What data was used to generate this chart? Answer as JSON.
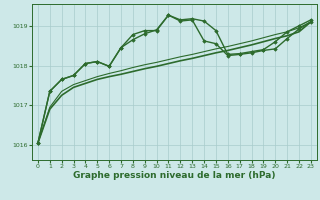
{
  "background_color": "#cde8e8",
  "grid_color": "#a8cccc",
  "line_color": "#2d6b2d",
  "marker_color": "#2d6b2d",
  "xlabel": "Graphe pression niveau de la mer (hPa)",
  "xlabel_fontsize": 6.5,
  "ylim": [
    1015.62,
    1019.55
  ],
  "xlim": [
    -0.5,
    23.5
  ],
  "yticks": [
    1016,
    1017,
    1018,
    1019
  ],
  "xticks": [
    0,
    1,
    2,
    3,
    4,
    5,
    6,
    7,
    8,
    9,
    10,
    11,
    12,
    13,
    14,
    15,
    16,
    17,
    18,
    19,
    20,
    21,
    22,
    23
  ],
  "series": [
    {
      "x": [
        0,
        1,
        2,
        3,
        4,
        5,
        6,
        7,
        8,
        9,
        10,
        11,
        12,
        13,
        14,
        15,
        16,
        17,
        18,
        19,
        20,
        21,
        22,
        23
      ],
      "y": [
        1016.05,
        1016.9,
        1017.25,
        1017.45,
        1017.55,
        1017.65,
        1017.72,
        1017.78,
        1017.85,
        1017.92,
        1017.98,
        1018.05,
        1018.12,
        1018.18,
        1018.25,
        1018.32,
        1018.38,
        1018.45,
        1018.52,
        1018.6,
        1018.68,
        1018.75,
        1018.85,
        1019.1
      ],
      "marker": false,
      "linewidth": 1.2
    },
    {
      "x": [
        0,
        1,
        2,
        3,
        4,
        5,
        6,
        7,
        8,
        9,
        10,
        11,
        12,
        13,
        14,
        15,
        16,
        17,
        18,
        19,
        20,
        21,
        22,
        23
      ],
      "y": [
        1016.05,
        1016.95,
        1017.35,
        1017.52,
        1017.62,
        1017.72,
        1017.8,
        1017.87,
        1017.95,
        1018.02,
        1018.08,
        1018.15,
        1018.22,
        1018.28,
        1018.35,
        1018.42,
        1018.48,
        1018.55,
        1018.62,
        1018.7,
        1018.78,
        1018.85,
        1018.95,
        1019.1
      ],
      "marker": false,
      "linewidth": 0.8
    },
    {
      "x": [
        0,
        1,
        2,
        3,
        4,
        5,
        6,
        7,
        8,
        9,
        10,
        11,
        12,
        13,
        14,
        15,
        16,
        17,
        18,
        19,
        20,
        21,
        22,
        23
      ],
      "y": [
        1016.05,
        1017.35,
        1017.65,
        1017.75,
        1018.05,
        1018.1,
        1017.98,
        1018.45,
        1018.65,
        1018.8,
        1018.9,
        1019.27,
        1019.12,
        1019.15,
        1018.62,
        1018.55,
        1018.25,
        1018.28,
        1018.32,
        1018.38,
        1018.42,
        1018.68,
        1018.92,
        1019.1
      ],
      "marker": true,
      "linewidth": 1.0
    },
    {
      "x": [
        0,
        1,
        2,
        3,
        4,
        5,
        6,
        7,
        8,
        9,
        10,
        11,
        12,
        13,
        14,
        15,
        16,
        17,
        18,
        19,
        20,
        21,
        22,
        23
      ],
      "y": [
        1016.05,
        1017.35,
        1017.65,
        1017.75,
        1018.05,
        1018.1,
        1017.98,
        1018.45,
        1018.78,
        1018.88,
        1018.88,
        1019.27,
        1019.15,
        1019.18,
        1019.12,
        1018.88,
        1018.28,
        1018.3,
        1018.35,
        1018.4,
        1018.6,
        1018.85,
        1019.0,
        1019.15
      ],
      "marker": true,
      "linewidth": 1.0
    }
  ]
}
